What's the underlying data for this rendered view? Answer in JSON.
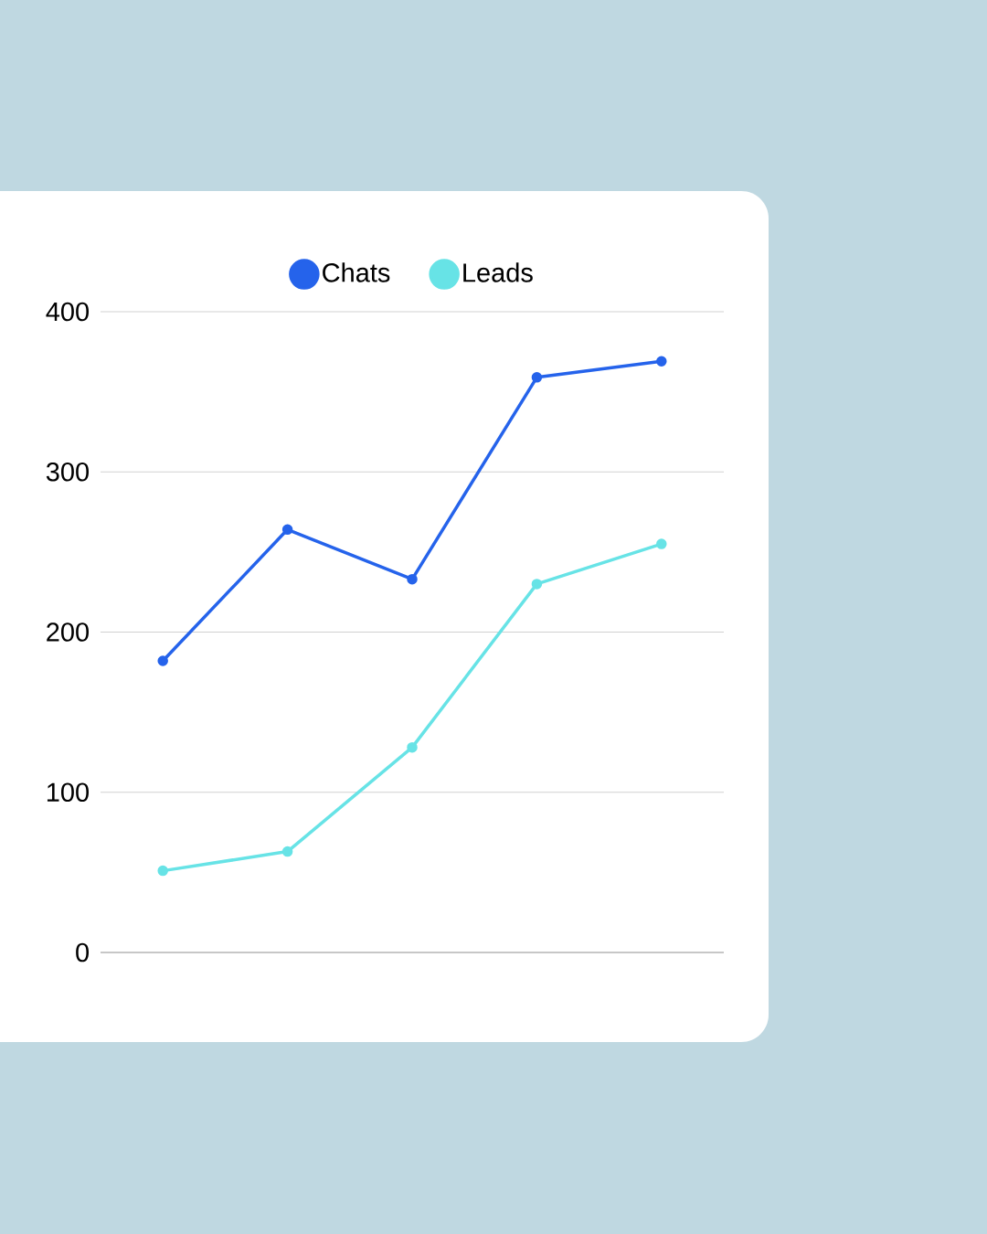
{
  "chart_data": {
    "type": "line",
    "categories": [
      null,
      null,
      null,
      null,
      null
    ],
    "series": [
      {
        "name": "Chats",
        "color": "#2563eb",
        "values": [
          182,
          264,
          233,
          359,
          369
        ]
      },
      {
        "name": "Leads",
        "color": "#67e3e6",
        "values": [
          51,
          63,
          128,
          230,
          255
        ]
      }
    ],
    "ylim": [
      0,
      400
    ],
    "yticks": [
      0,
      100,
      200,
      300,
      400
    ],
    "grid": "y",
    "legend": "top",
    "marker": "circle",
    "line_style": "solid"
  }
}
